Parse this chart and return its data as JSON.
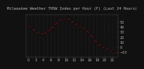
{
  "title": "Milwaukee Weather THSW Index per Hour (F) (Last 24 Hours)",
  "hours": [
    0,
    1,
    2,
    3,
    4,
    5,
    6,
    7,
    8,
    9,
    10,
    11,
    12,
    13,
    14,
    15,
    16,
    17,
    18,
    19,
    20,
    21,
    22,
    23
  ],
  "values": [
    42,
    38,
    32,
    28,
    26,
    30,
    36,
    44,
    52,
    56,
    58,
    54,
    48,
    44,
    40,
    36,
    28,
    18,
    8,
    2,
    -2,
    -6,
    -10,
    -14
  ],
  "bg_color": "#111111",
  "line_color": "#ff0000",
  "marker_color": "#111111",
  "grid_color": "#555555",
  "text_color": "#bbbbbb",
  "ylim": [
    -20,
    65
  ],
  "yticks": [
    -10,
    0,
    10,
    20,
    30,
    40,
    50
  ],
  "title_fontsize": 4.0,
  "tick_fontsize": 3.5
}
